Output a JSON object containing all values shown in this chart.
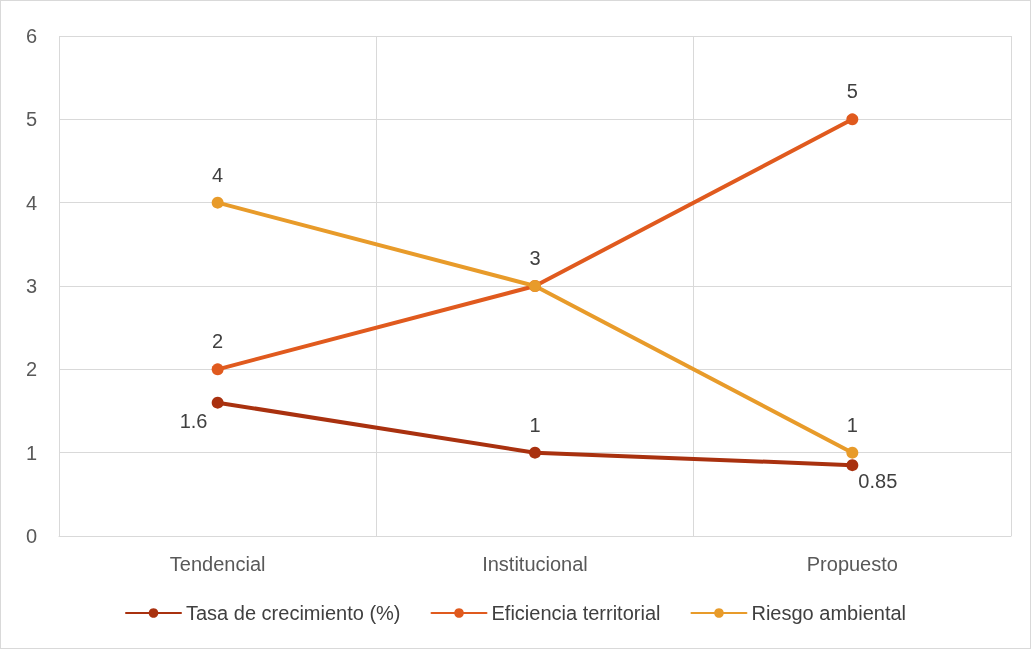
{
  "chart_data": {
    "type": "line",
    "categories": [
      "Tendencial",
      "Institucional",
      "Propuesto"
    ],
    "series": [
      {
        "name": "Tasa de crecimiento (%)",
        "color": "#a9310f",
        "values": [
          1.6,
          1,
          0.85
        ],
        "value_labels": [
          "1.6",
          "1",
          "0.85"
        ]
      },
      {
        "name": "Eficiencia territorial",
        "color": "#e05a1e",
        "values": [
          2,
          3,
          5
        ],
        "value_labels": [
          "2",
          "3",
          "5"
        ]
      },
      {
        "name": "Riesgo ambiental",
        "color": "#e89b2a",
        "values": [
          4,
          3,
          1
        ],
        "value_labels": [
          "4",
          null,
          "1"
        ]
      }
    ],
    "ylim": [
      0,
      6
    ],
    "yticks": [
      0,
      1,
      2,
      3,
      4,
      5,
      6
    ],
    "grid": true,
    "legend": "bottom",
    "marker": "circle",
    "line_style": "solid"
  }
}
